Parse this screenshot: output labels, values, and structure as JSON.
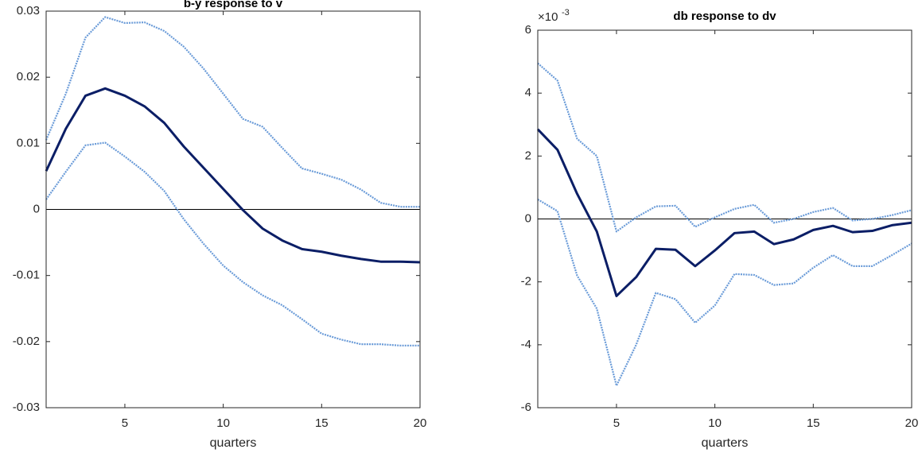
{
  "chart_data": [
    {
      "type": "line",
      "title": "b-y response to v",
      "xlabel": "quarters",
      "x": [
        1,
        2,
        3,
        4,
        5,
        6,
        7,
        8,
        9,
        10,
        11,
        12,
        13,
        14,
        15,
        16,
        17,
        18,
        19,
        20
      ],
      "xlim": [
        1,
        20
      ],
      "xticks": [
        5,
        10,
        15,
        20
      ],
      "ylim": [
        -0.03,
        0.03
      ],
      "yticks": [
        -0.03,
        -0.02,
        -0.01,
        0,
        0.01,
        0.02,
        0.03
      ],
      "zero_line": true,
      "series": [
        {
          "color": "#6a9bd8",
          "style": "dotted",
          "values": [
            0.0105,
            0.0175,
            0.026,
            0.0291,
            0.0282,
            0.0283,
            0.027,
            0.0246,
            0.0213,
            0.0175,
            0.0137,
            0.0125,
            0.0093,
            0.0062,
            0.0054,
            0.0045,
            0.003,
            0.001,
            0.0004,
            0.0004
          ]
        },
        {
          "color": "#6a9bd8",
          "style": "dotted",
          "values": [
            0.0015,
            0.0057,
            0.0097,
            0.0101,
            0.008,
            0.0057,
            0.0028,
            -0.0015,
            -0.0052,
            -0.0085,
            -0.011,
            -0.013,
            -0.0145,
            -0.0166,
            -0.0188,
            -0.0197,
            -0.0204,
            -0.0204,
            -0.0206,
            -0.0206
          ]
        },
        {
          "color": "#0b1e66",
          "style": "solid",
          "values": [
            0.0058,
            0.0122,
            0.0172,
            0.0183,
            0.0172,
            0.0156,
            0.0131,
            0.0095,
            0.0063,
            0.0031,
            -0.0001,
            -0.0029,
            -0.0047,
            -0.006,
            -0.0064,
            -0.007,
            -0.0075,
            -0.0079,
            -0.0079,
            -0.008
          ]
        }
      ]
    },
    {
      "type": "line",
      "title": "db response to dv",
      "xlabel": "quarters",
      "y_multiplier": {
        "base": "×10",
        "exponent": "-3"
      },
      "x": [
        1,
        2,
        3,
        4,
        5,
        6,
        7,
        8,
        9,
        10,
        11,
        12,
        13,
        14,
        15,
        16,
        17,
        18,
        19,
        20
      ],
      "xlim": [
        1,
        20
      ],
      "xticks": [
        5,
        10,
        15,
        20
      ],
      "ylim": [
        -6,
        6
      ],
      "yticks": [
        -6,
        -4,
        -2,
        0,
        2,
        4,
        6
      ],
      "zero_line": true,
      "series": [
        {
          "color": "#6a9bd8",
          "style": "dotted",
          "values": [
            4.95,
            4.4,
            2.55,
            2.0,
            -0.4,
            0.05,
            0.4,
            0.42,
            -0.25,
            0.05,
            0.32,
            0.45,
            -0.12,
            0.0,
            0.22,
            0.35,
            -0.05,
            0.0,
            0.12,
            0.28
          ]
        },
        {
          "color": "#6a9bd8",
          "style": "dotted",
          "values": [
            0.62,
            0.25,
            -1.8,
            -2.85,
            -5.3,
            -4.0,
            -2.35,
            -2.55,
            -3.3,
            -2.75,
            -1.75,
            -1.78,
            -2.1,
            -2.05,
            -1.55,
            -1.15,
            -1.5,
            -1.5,
            -1.15,
            -0.78
          ]
        },
        {
          "color": "#0b1e66",
          "style": "solid",
          "values": [
            2.85,
            2.2,
            0.8,
            -0.4,
            -2.45,
            -1.85,
            -0.95,
            -0.98,
            -1.5,
            -1.0,
            -0.45,
            -0.4,
            -0.8,
            -0.65,
            -0.35,
            -0.22,
            -0.42,
            -0.38,
            -0.2,
            -0.12
          ]
        }
      ]
    }
  ]
}
